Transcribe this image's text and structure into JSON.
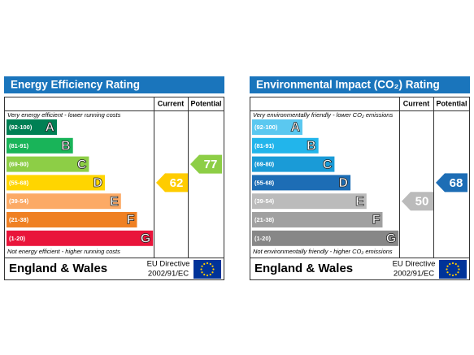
{
  "panels": [
    {
      "title": "Energy Efficiency Rating",
      "headers": [
        "Current",
        "Potential"
      ],
      "top_note": "Very energy efficient - lower running costs",
      "bottom_note": "Not energy efficient - higher running costs",
      "bands": [
        {
          "range": "(92-100)",
          "letter": "A",
          "color": "#008054"
        },
        {
          "range": "(81-91)",
          "letter": "B",
          "color": "#19b459"
        },
        {
          "range": "(69-80)",
          "letter": "C",
          "color": "#8dce46"
        },
        {
          "range": "(55-68)",
          "letter": "D",
          "color": "#ffd500"
        },
        {
          "range": "(39-54)",
          "letter": "E",
          "color": "#fcaa65"
        },
        {
          "range": "(21-38)",
          "letter": "F",
          "color": "#ef8023"
        },
        {
          "range": "(1-20)",
          "letter": "G",
          "color": "#e9153b"
        }
      ],
      "current": {
        "value": 62,
        "color": "#ffcc00"
      },
      "potential": {
        "value": 77,
        "color": "#8dce46"
      },
      "footer": {
        "region": "England & Wales",
        "directive": [
          "EU Directive",
          "2002/91/EC"
        ]
      }
    },
    {
      "title": "Environmental Impact (CO₂) Rating",
      "headers": [
        "Current",
        "Potential"
      ],
      "top_note": "Very environmentally friendly - lower CO₂ emissions",
      "bottom_note": "Not environmentally friendly - higher CO₂ emissions",
      "bands": [
        {
          "range": "(92-100)",
          "letter": "A",
          "color": "#5bc8f0"
        },
        {
          "range": "(81-91)",
          "letter": "B",
          "color": "#22b5eb"
        },
        {
          "range": "(69-80)",
          "letter": "C",
          "color": "#1a9bd7"
        },
        {
          "range": "(55-68)",
          "letter": "D",
          "color": "#1d6db5"
        },
        {
          "range": "(39-54)",
          "letter": "E",
          "color": "#bbbbbb"
        },
        {
          "range": "(21-38)",
          "letter": "F",
          "color": "#a0a0a0"
        },
        {
          "range": "(1-20)",
          "letter": "G",
          "color": "#878787"
        }
      ],
      "current": {
        "value": 50,
        "color": "#bbbbbb"
      },
      "potential": {
        "value": 68,
        "color": "#1d6db5"
      },
      "footer": {
        "region": "England & Wales",
        "directive": [
          "EU Directive",
          "2002/91/EC"
        ]
      }
    }
  ]
}
